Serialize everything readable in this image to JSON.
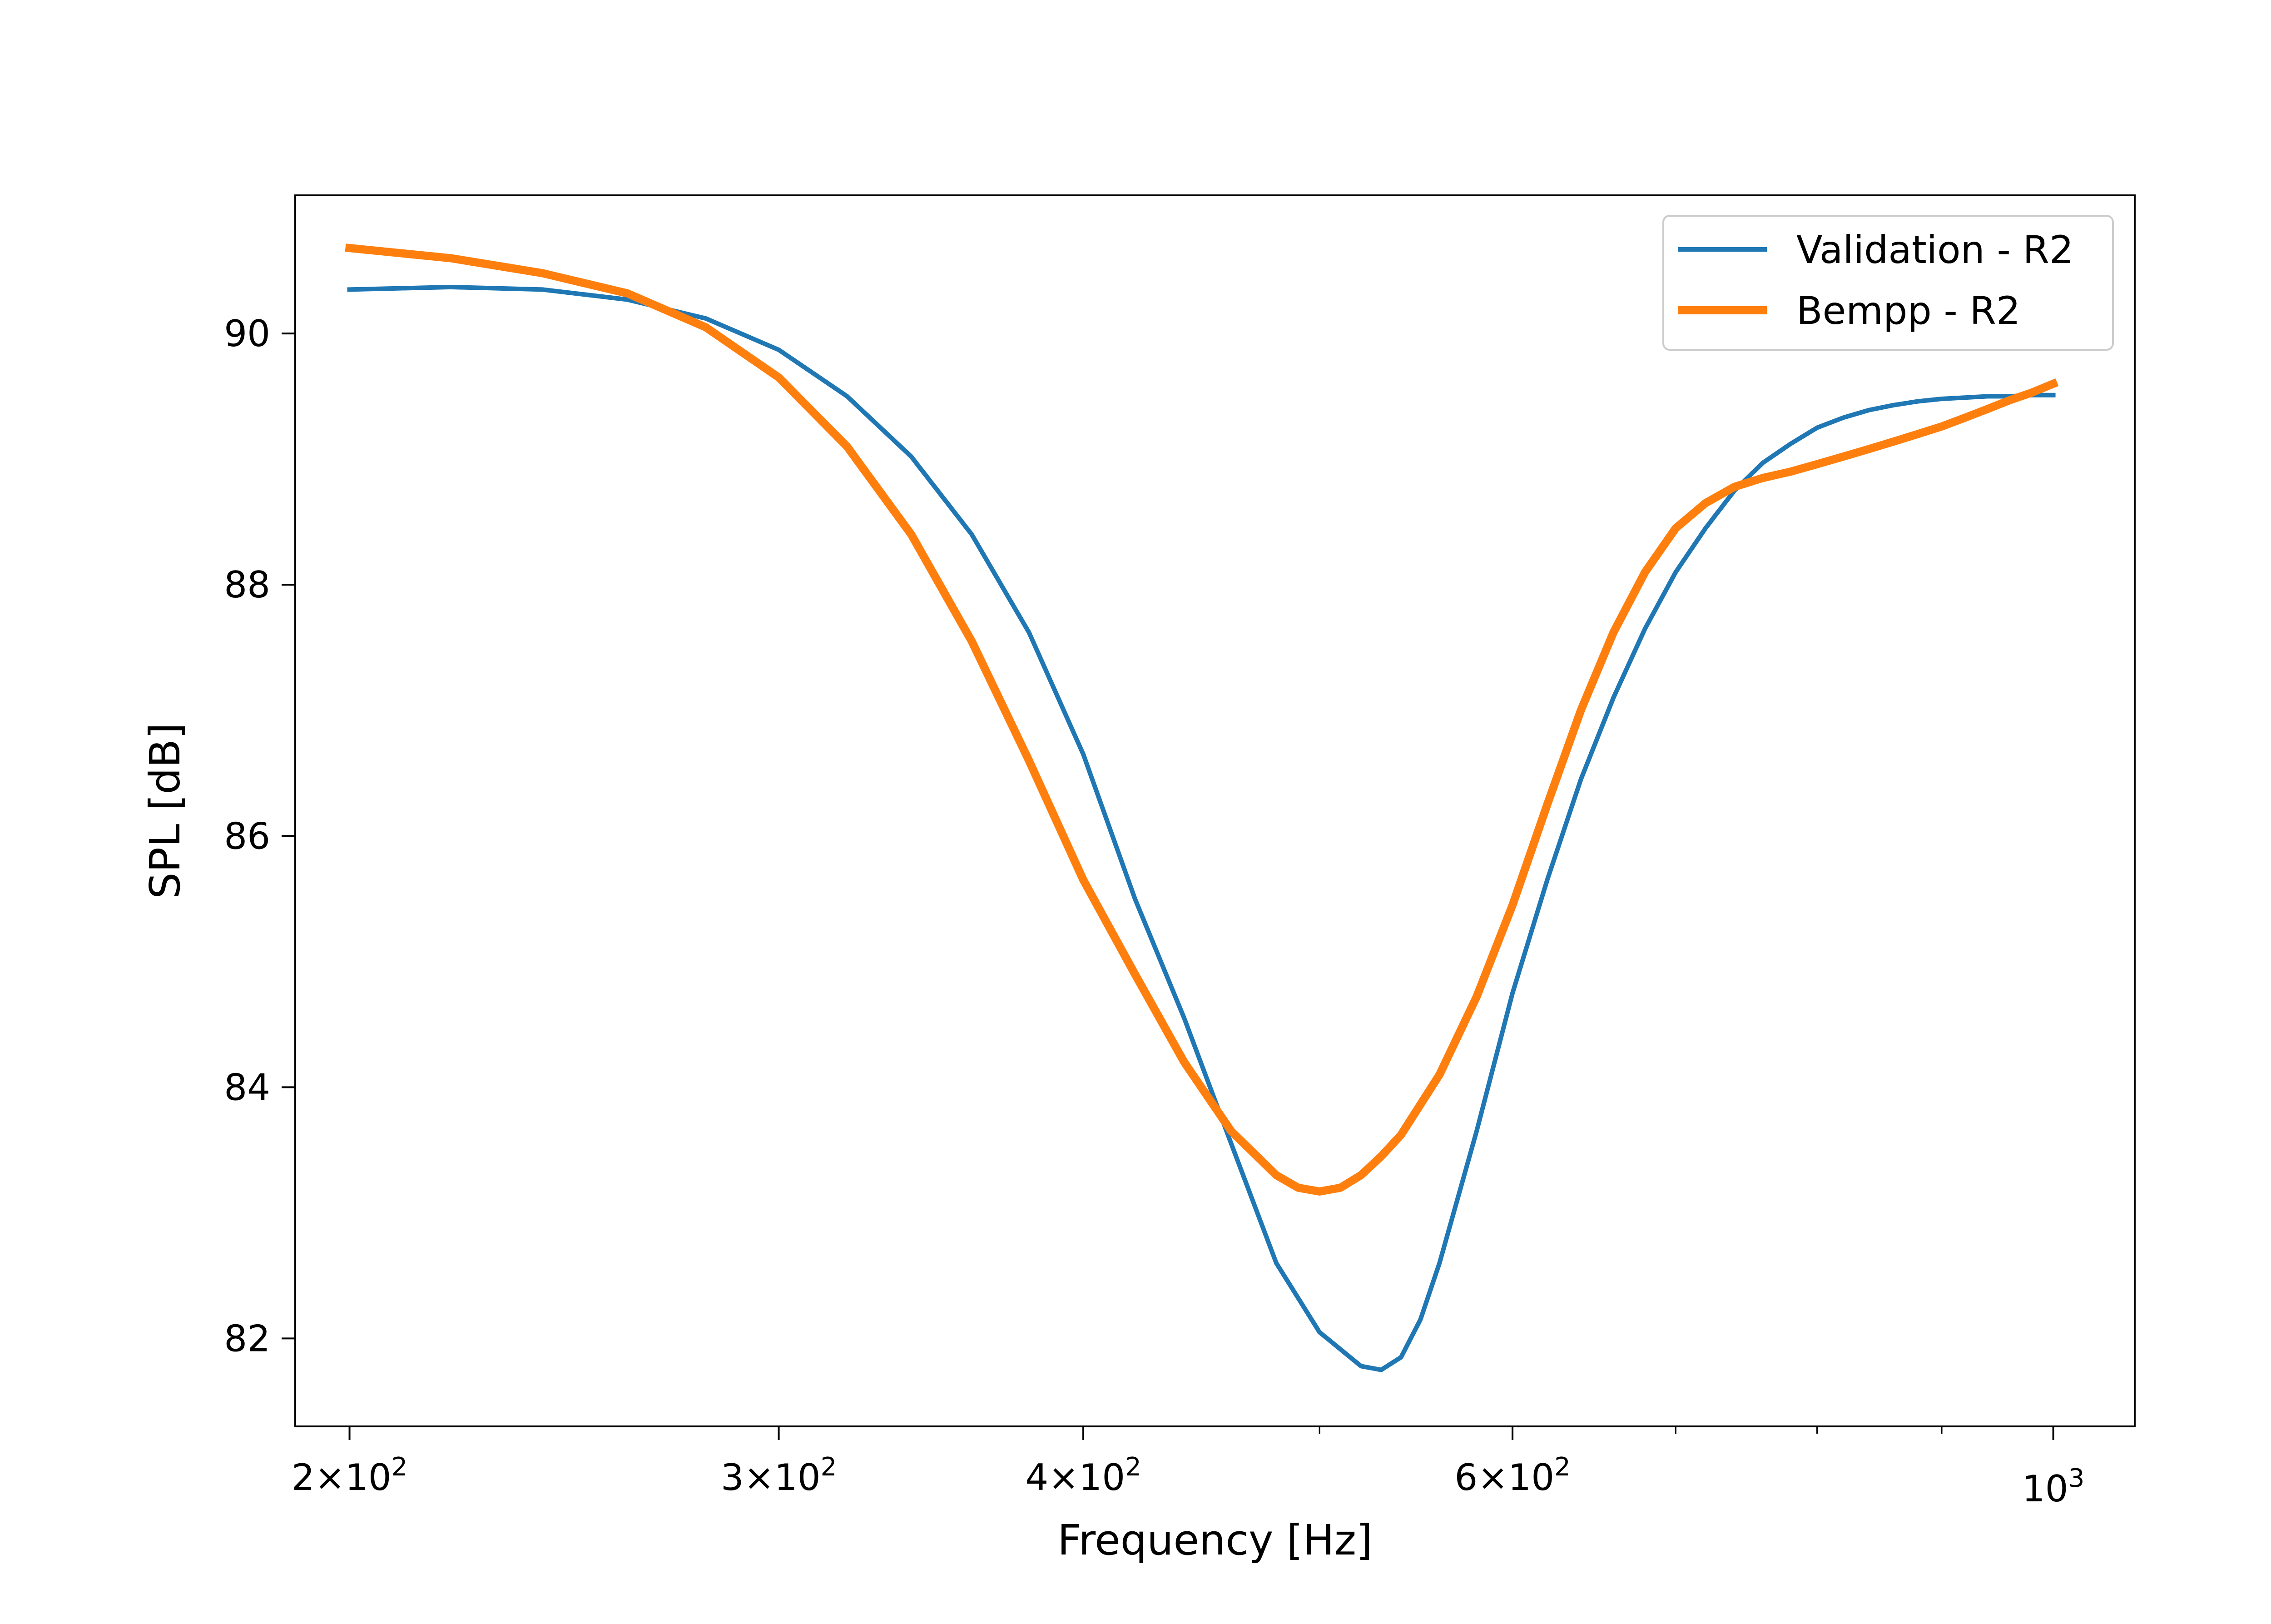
{
  "chart_data": {
    "type": "line",
    "xlabel": "Frequency [Hz]",
    "ylabel": "SPL [dB]",
    "x_scale": "log",
    "xlim": [
      190,
      1080
    ],
    "ylim": [
      81.3,
      91.1
    ],
    "x_ticks": [
      {
        "value": 200,
        "base": "2",
        "exp": "2"
      },
      {
        "value": 300,
        "base": "3",
        "exp": "2"
      },
      {
        "value": 400,
        "base": "4",
        "exp": "2"
      },
      {
        "value": 600,
        "base": "6",
        "exp": "2"
      },
      {
        "value": 1000,
        "base": "",
        "exp": "3"
      }
    ],
    "x_minor_ticks": [
      500,
      700,
      800,
      900
    ],
    "y_ticks": [
      {
        "value": 82,
        "label": "82"
      },
      {
        "value": 84,
        "label": "84"
      },
      {
        "value": 86,
        "label": "86"
      },
      {
        "value": 88,
        "label": "88"
      },
      {
        "value": 90,
        "label": "90"
      }
    ],
    "legend": {
      "position": "top-right"
    },
    "grid": false,
    "series": [
      {
        "name": "Validation - R2",
        "color": "#1f77b4",
        "x": [
          200,
          220,
          240,
          260,
          280,
          300,
          320,
          340,
          360,
          380,
          400,
          420,
          440,
          460,
          480,
          500,
          520,
          530,
          540,
          550,
          560,
          580,
          600,
          620,
          640,
          660,
          680,
          700,
          720,
          740,
          760,
          780,
          800,
          820,
          840,
          860,
          880,
          900,
          920,
          940,
          960,
          980,
          1000
        ],
        "y": [
          90.35,
          90.37,
          90.35,
          90.27,
          90.12,
          89.87,
          89.5,
          89.02,
          88.4,
          87.62,
          86.65,
          85.5,
          84.55,
          83.55,
          82.6,
          82.05,
          81.78,
          81.75,
          81.85,
          82.15,
          82.6,
          83.65,
          84.75,
          85.65,
          86.45,
          87.1,
          87.65,
          88.1,
          88.45,
          88.75,
          88.97,
          89.12,
          89.25,
          89.33,
          89.39,
          89.43,
          89.46,
          89.48,
          89.49,
          89.5,
          89.5,
          89.51,
          89.51
        ]
      },
      {
        "name": "Bempp - R2",
        "color": "#ff7f0e",
        "x": [
          200,
          220,
          240,
          260,
          280,
          300,
          320,
          340,
          360,
          380,
          400,
          420,
          440,
          460,
          480,
          490,
          500,
          510,
          520,
          530,
          540,
          560,
          580,
          600,
          620,
          640,
          660,
          680,
          700,
          720,
          740,
          760,
          780,
          800,
          820,
          840,
          860,
          880,
          900,
          920,
          940,
          960,
          980,
          1000
        ],
        "y": [
          90.68,
          90.6,
          90.48,
          90.32,
          90.05,
          89.65,
          89.1,
          88.4,
          87.55,
          86.6,
          85.65,
          84.9,
          84.2,
          83.65,
          83.3,
          83.2,
          83.17,
          83.2,
          83.3,
          83.45,
          83.62,
          84.1,
          84.72,
          85.45,
          86.25,
          87.0,
          87.62,
          88.1,
          88.45,
          88.65,
          88.78,
          88.85,
          88.9,
          88.96,
          89.02,
          89.08,
          89.14,
          89.2,
          89.26,
          89.33,
          89.4,
          89.47,
          89.53,
          89.6
        ]
      }
    ]
  }
}
